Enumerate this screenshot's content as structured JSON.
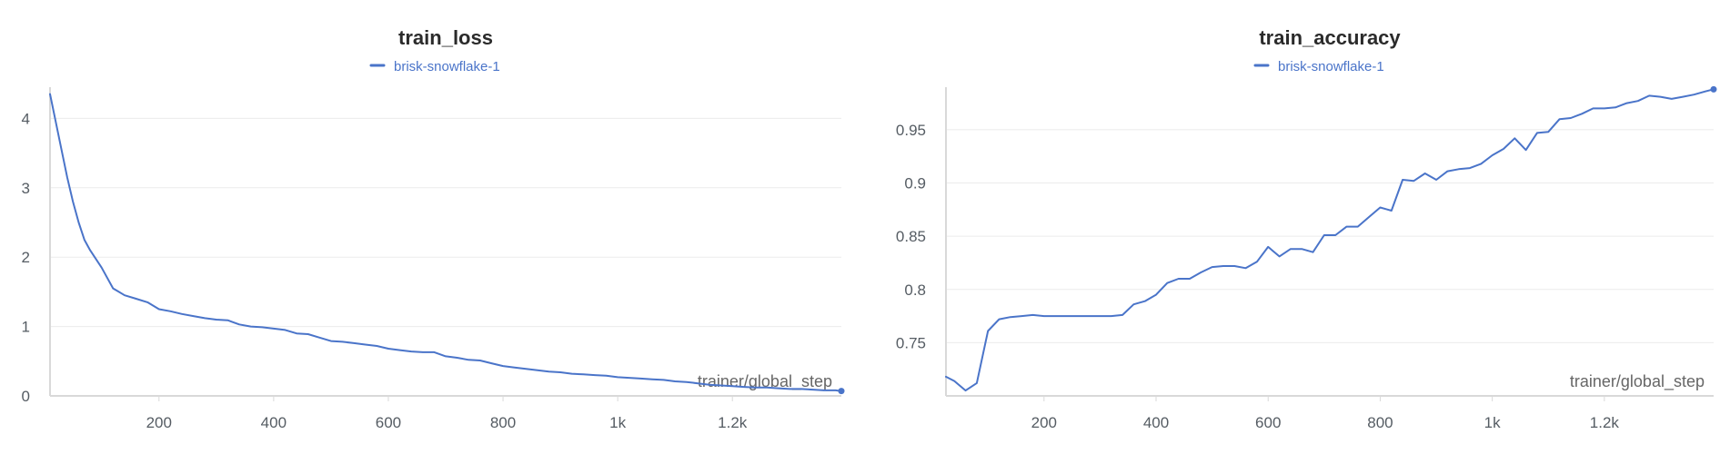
{
  "colors": {
    "series": "#4a74c9"
  },
  "chart_data": [
    {
      "type": "line",
      "title": "train_loss",
      "legend": [
        "brisk-snowflake-1"
      ],
      "xlabel": "trainer/global_step",
      "ylabel": "",
      "xlim": [
        10,
        1390
      ],
      "ylim": [
        0,
        4.45
      ],
      "grid": true,
      "x_ticks": [
        {
          "value": 200,
          "label": "200"
        },
        {
          "value": 400,
          "label": "400"
        },
        {
          "value": 600,
          "label": "600"
        },
        {
          "value": 800,
          "label": "800"
        },
        {
          "value": 1000,
          "label": "1k"
        },
        {
          "value": 1200,
          "label": "1.2k"
        }
      ],
      "y_ticks": [
        {
          "value": 0,
          "label": "0"
        },
        {
          "value": 1,
          "label": "1"
        },
        {
          "value": 2,
          "label": "2"
        },
        {
          "value": 3,
          "label": "3"
        },
        {
          "value": 4,
          "label": "4"
        }
      ],
      "series": [
        {
          "name": "brisk-snowflake-1",
          "x": [
            10,
            20,
            30,
            40,
            50,
            60,
            70,
            80,
            100,
            120,
            140,
            160,
            180,
            200,
            220,
            240,
            260,
            280,
            300,
            320,
            340,
            360,
            380,
            400,
            420,
            440,
            460,
            480,
            500,
            520,
            540,
            560,
            580,
            600,
            620,
            640,
            660,
            680,
            700,
            720,
            740,
            760,
            780,
            800,
            820,
            840,
            860,
            880,
            900,
            920,
            940,
            960,
            980,
            1000,
            1020,
            1040,
            1060,
            1080,
            1100,
            1120,
            1140,
            1160,
            1180,
            1200,
            1220,
            1240,
            1260,
            1280,
            1300,
            1320,
            1340,
            1360,
            1380,
            1390
          ],
          "y": [
            4.35,
            3.95,
            3.55,
            3.15,
            2.8,
            2.5,
            2.25,
            2.1,
            1.85,
            1.55,
            1.45,
            1.4,
            1.35,
            1.25,
            1.22,
            1.18,
            1.15,
            1.12,
            1.1,
            1.09,
            1.03,
            1.0,
            0.99,
            0.97,
            0.95,
            0.9,
            0.89,
            0.84,
            0.79,
            0.78,
            0.76,
            0.74,
            0.72,
            0.68,
            0.66,
            0.64,
            0.63,
            0.63,
            0.57,
            0.55,
            0.52,
            0.51,
            0.47,
            0.43,
            0.41,
            0.39,
            0.37,
            0.35,
            0.34,
            0.32,
            0.31,
            0.3,
            0.29,
            0.27,
            0.26,
            0.25,
            0.24,
            0.23,
            0.21,
            0.2,
            0.18,
            0.16,
            0.15,
            0.14,
            0.13,
            0.12,
            0.12,
            0.11,
            0.1,
            0.1,
            0.09,
            0.08,
            0.08,
            0.07
          ]
        }
      ]
    },
    {
      "type": "line",
      "title": "train_accuracy",
      "legend": [
        "brisk-snowflake-1"
      ],
      "xlabel": "trainer/global_step",
      "ylabel": "",
      "xlim": [
        25,
        1395
      ],
      "ylim": [
        0.7,
        0.99
      ],
      "grid": true,
      "x_ticks": [
        {
          "value": 200,
          "label": "200"
        },
        {
          "value": 400,
          "label": "400"
        },
        {
          "value": 600,
          "label": "600"
        },
        {
          "value": 800,
          "label": "800"
        },
        {
          "value": 1000,
          "label": "1k"
        },
        {
          "value": 1200,
          "label": "1.2k"
        }
      ],
      "y_ticks": [
        {
          "value": 0.75,
          "label": "0.75"
        },
        {
          "value": 0.8,
          "label": "0.8"
        },
        {
          "value": 0.85,
          "label": "0.85"
        },
        {
          "value": 0.9,
          "label": "0.9"
        },
        {
          "value": 0.95,
          "label": "0.95"
        }
      ],
      "series": [
        {
          "name": "brisk-snowflake-1",
          "x": [
            25,
            40,
            60,
            80,
            100,
            120,
            140,
            160,
            180,
            200,
            220,
            240,
            260,
            280,
            300,
            320,
            340,
            360,
            380,
            400,
            420,
            440,
            460,
            480,
            500,
            520,
            540,
            560,
            580,
            600,
            620,
            640,
            660,
            680,
            700,
            720,
            740,
            760,
            780,
            800,
            820,
            840,
            860,
            880,
            900,
            920,
            940,
            960,
            980,
            1000,
            1020,
            1040,
            1060,
            1080,
            1100,
            1120,
            1140,
            1160,
            1180,
            1200,
            1220,
            1240,
            1260,
            1280,
            1300,
            1320,
            1340,
            1360,
            1380,
            1395
          ],
          "y": [
            0.718,
            0.714,
            0.705,
            0.712,
            0.761,
            0.772,
            0.774,
            0.775,
            0.776,
            0.775,
            0.775,
            0.775,
            0.775,
            0.775,
            0.775,
            0.775,
            0.776,
            0.786,
            0.789,
            0.795,
            0.806,
            0.81,
            0.81,
            0.816,
            0.821,
            0.822,
            0.822,
            0.82,
            0.826,
            0.84,
            0.831,
            0.838,
            0.838,
            0.835,
            0.851,
            0.851,
            0.859,
            0.859,
            0.868,
            0.877,
            0.874,
            0.903,
            0.902,
            0.909,
            0.903,
            0.911,
            0.913,
            0.914,
            0.918,
            0.926,
            0.932,
            0.942,
            0.931,
            0.947,
            0.948,
            0.96,
            0.961,
            0.965,
            0.97,
            0.97,
            0.971,
            0.975,
            0.977,
            0.982,
            0.981,
            0.979,
            0.981,
            0.983,
            0.986,
            0.988
          ]
        }
      ]
    }
  ]
}
